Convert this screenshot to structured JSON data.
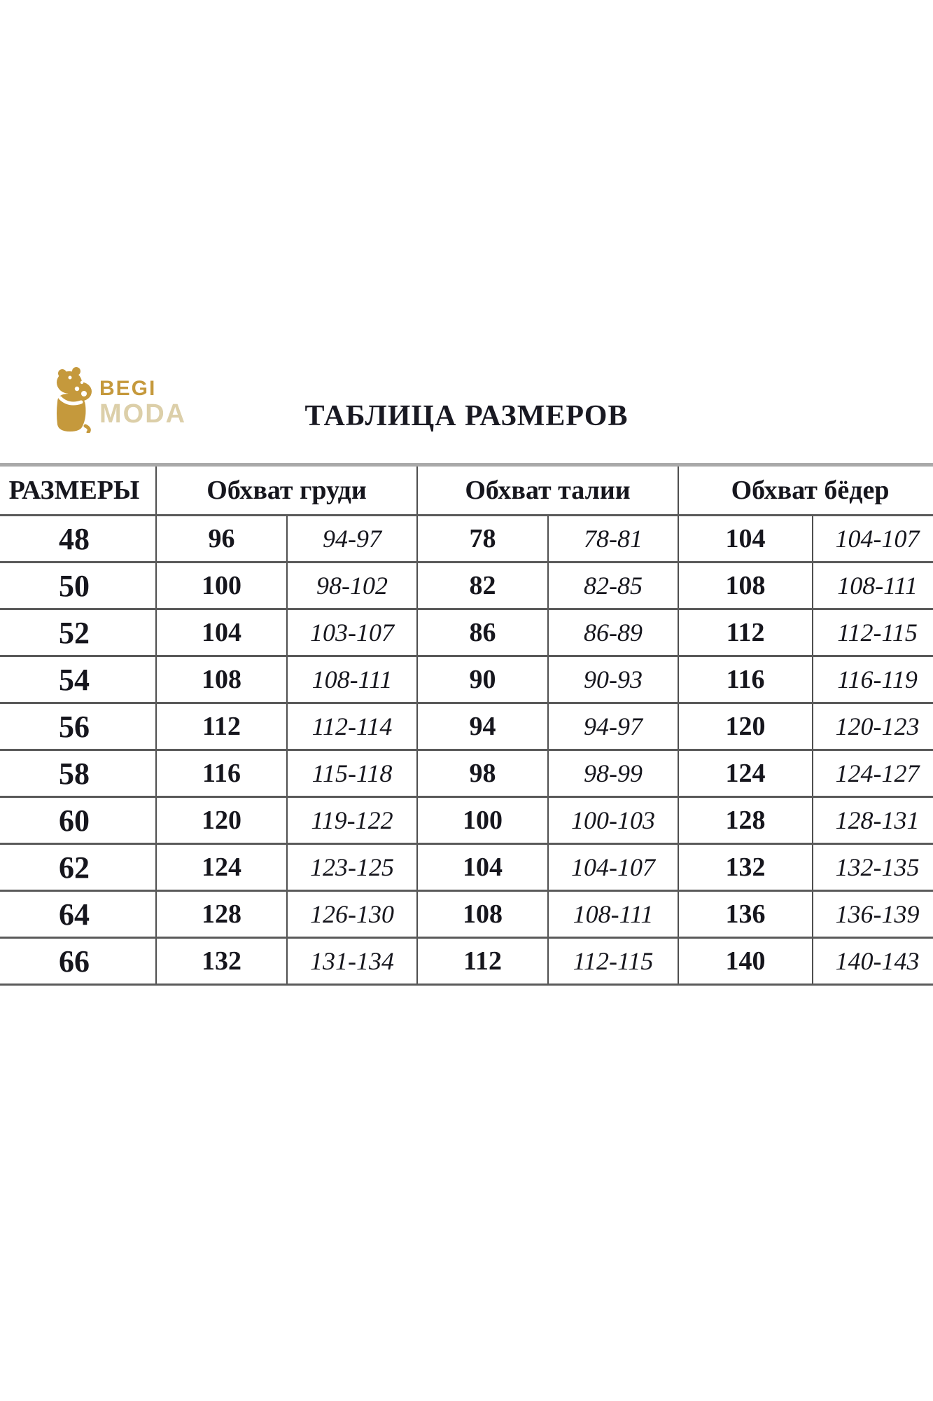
{
  "logo": {
    "icon": "hippo-icon",
    "brand_top": "BEGI",
    "brand_bottom": "MODA",
    "gold": "#c5993c",
    "gold_light": "#dccfa9"
  },
  "title": "ТАБЛИЦА РАЗМЕРОВ",
  "table": {
    "headers": {
      "sizes": "РАЗМЕРЫ",
      "chest": "Обхват груди",
      "waist": "Обхват талии",
      "hips": "Обхват бёдер"
    },
    "border_color": "#5a5a5a",
    "rows": [
      {
        "size": "48",
        "chest": "96",
        "chest_range": "94-97",
        "waist": "78",
        "waist_range": "78-81",
        "hips": "104",
        "hips_range": "104-107"
      },
      {
        "size": "50",
        "chest": "100",
        "chest_range": "98-102",
        "waist": "82",
        "waist_range": "82-85",
        "hips": "108",
        "hips_range": "108-111"
      },
      {
        "size": "52",
        "chest": "104",
        "chest_range": "103-107",
        "waist": "86",
        "waist_range": "86-89",
        "hips": "112",
        "hips_range": "112-115"
      },
      {
        "size": "54",
        "chest": "108",
        "chest_range": "108-111",
        "waist": "90",
        "waist_range": "90-93",
        "hips": "116",
        "hips_range": "116-119"
      },
      {
        "size": "56",
        "chest": "112",
        "chest_range": "112-114",
        "waist": "94",
        "waist_range": "94-97",
        "hips": "120",
        "hips_range": "120-123"
      },
      {
        "size": "58",
        "chest": "116",
        "chest_range": "115-118",
        "waist": "98",
        "waist_range": "98-99",
        "hips": "124",
        "hips_range": "124-127"
      },
      {
        "size": "60",
        "chest": "120",
        "chest_range": "119-122",
        "waist": "100",
        "waist_range": "100-103",
        "hips": "128",
        "hips_range": "128-131"
      },
      {
        "size": "62",
        "chest": "124",
        "chest_range": "123-125",
        "waist": "104",
        "waist_range": "104-107",
        "hips": "132",
        "hips_range": "132-135"
      },
      {
        "size": "64",
        "chest": "128",
        "chest_range": "126-130",
        "waist": "108",
        "waist_range": "108-111",
        "hips": "136",
        "hips_range": "136-139"
      },
      {
        "size": "66",
        "chest": "132",
        "chest_range": "131-134",
        "waist": "112",
        "waist_range": "112-115",
        "hips": "140",
        "hips_range": "140-143"
      }
    ]
  }
}
